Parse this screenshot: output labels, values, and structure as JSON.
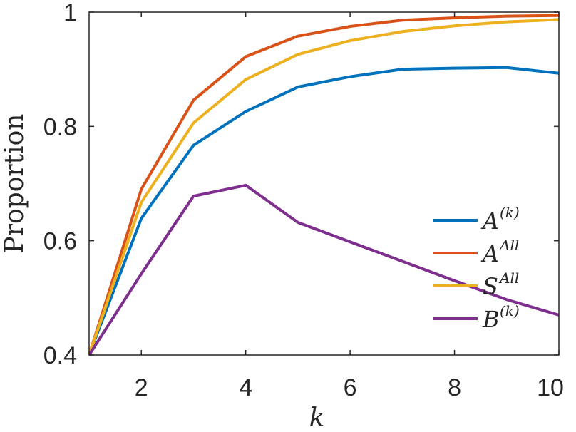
{
  "chart_data": {
    "type": "line",
    "x": [
      1,
      2,
      3,
      4,
      5,
      6,
      7,
      8,
      9,
      10
    ],
    "xlabel": "k",
    "ylabel": "Proportion",
    "xlim": [
      1,
      10
    ],
    "ylim": [
      0.4,
      1
    ],
    "xticks": [
      2,
      4,
      6,
      8,
      10
    ],
    "yticks": [
      0.4,
      0.6,
      0.8,
      1
    ],
    "xtick_labels": [
      "2",
      "4",
      "6",
      "8",
      "10"
    ],
    "ytick_labels": [
      "0.4",
      "0.6",
      "0.8",
      "1"
    ],
    "grid": false,
    "legend_position": "lower-right",
    "series": [
      {
        "name": "A^(k)",
        "base": "A",
        "sup": "(k)",
        "color": "#0072BD",
        "values": [
          0.4,
          0.639,
          0.767,
          0.826,
          0.869,
          0.887,
          0.9,
          0.902,
          0.903,
          0.893
        ]
      },
      {
        "name": "A^All",
        "base": "A",
        "sup": "All",
        "color": "#D95319",
        "values": [
          0.4,
          0.69,
          0.846,
          0.922,
          0.958,
          0.975,
          0.986,
          0.99,
          0.993,
          0.994
        ]
      },
      {
        "name": "S^All",
        "base": "S",
        "sup": "All",
        "color": "#EDB120",
        "values": [
          0.4,
          0.667,
          0.806,
          0.882,
          0.926,
          0.95,
          0.966,
          0.976,
          0.983,
          0.987
        ]
      },
      {
        "name": "B^(k)",
        "base": "B",
        "sup": "(k)",
        "color": "#7E2F8E",
        "values": [
          0.4,
          0.542,
          0.678,
          0.697,
          0.632,
          0.598,
          0.564,
          0.53,
          0.497,
          0.47
        ]
      }
    ]
  }
}
